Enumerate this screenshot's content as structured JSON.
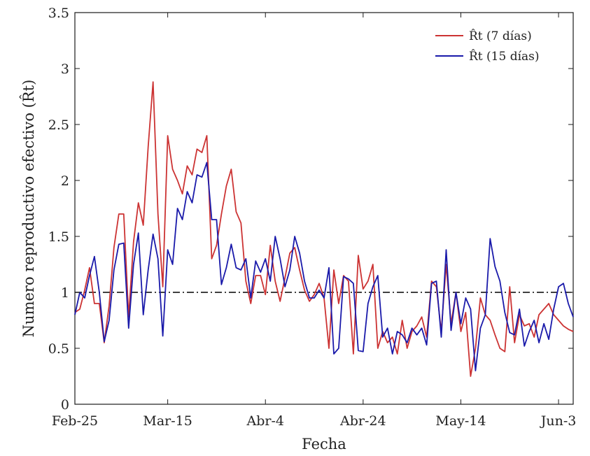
{
  "chart_data": {
    "type": "line",
    "xlabel": "Fecha",
    "ylabel": "Numero reproductivo efectivo (R̂t)",
    "x_tick_labels": [
      "Feb-25",
      "Mar-15",
      "Abr-4",
      "Abr-24",
      "May-14",
      "Jun-3"
    ],
    "x_tick_days": [
      0,
      19,
      39,
      59,
      79,
      99
    ],
    "x_range_days": [
      0,
      102
    ],
    "x_unit": "days from Feb-25",
    "ylim": [
      0,
      3.5
    ],
    "y_ticks": [
      0,
      0.5,
      1,
      1.5,
      2,
      2.5,
      3,
      3.5
    ],
    "y_tick_labels": [
      "0",
      "0.5",
      "1",
      "1.5",
      "2",
      "2.5",
      "3",
      "3.5"
    ],
    "grid": false,
    "legend_position": "top-right",
    "reference_line": {
      "y": 1,
      "style": "dash-dot",
      "color": "#000000"
    },
    "series": [
      {
        "name": "R̂t (7 días)",
        "color": "#cc3333",
        "x": [
          0,
          1,
          2,
          3,
          4,
          5,
          6,
          7,
          8,
          9,
          10,
          11,
          12,
          13,
          14,
          15,
          16,
          17,
          18,
          19,
          20,
          21,
          22,
          23,
          24,
          25,
          26,
          27,
          28,
          29,
          30,
          31,
          32,
          33,
          34,
          35,
          36,
          37,
          38,
          39,
          40,
          41,
          42,
          43,
          44,
          45,
          46,
          47,
          48,
          49,
          50,
          51,
          52,
          53,
          54,
          55,
          56,
          57,
          58,
          59,
          60,
          61,
          62,
          63,
          64,
          65,
          66,
          67,
          68,
          69,
          70,
          71,
          72,
          73,
          74,
          75,
          76,
          77,
          78,
          79,
          80,
          81,
          82,
          83,
          84,
          85,
          86,
          87,
          88,
          89,
          90,
          91,
          92,
          93,
          94,
          95,
          96,
          97,
          98,
          99,
          100,
          101,
          102
        ],
        "values": [
          0.82,
          0.85,
          1.02,
          1.22,
          0.9,
          0.9,
          0.55,
          0.88,
          1.4,
          1.7,
          1.7,
          0.78,
          1.45,
          1.8,
          1.6,
          2.3,
          2.88,
          1.7,
          1.05,
          2.4,
          2.1,
          2.0,
          1.88,
          2.13,
          2.05,
          2.28,
          2.25,
          2.4,
          1.3,
          1.42,
          1.7,
          1.95,
          2.1,
          1.72,
          1.62,
          1.1,
          0.9,
          1.15,
          1.15,
          0.98,
          1.42,
          1.1,
          0.92,
          1.13,
          1.35,
          1.4,
          1.2,
          1.02,
          0.92,
          0.98,
          1.08,
          0.95,
          0.5,
          1.2,
          0.9,
          1.15,
          1.1,
          0.45,
          1.33,
          1.03,
          1.1,
          1.25,
          0.5,
          0.65,
          0.55,
          0.6,
          0.45,
          0.75,
          0.5,
          0.65,
          0.7,
          0.78,
          0.6,
          1.1,
          1.05,
          0.65,
          1.25,
          0.72,
          1.0,
          0.65,
          0.82,
          0.25,
          0.5,
          0.95,
          0.8,
          0.75,
          0.62,
          0.5,
          0.47,
          1.05,
          0.55,
          0.8,
          0.7,
          0.72,
          0.6,
          0.8,
          0.85,
          0.9,
          0.8,
          0.75,
          0.7,
          0.67,
          0.65
        ]
      },
      {
        "name": "R̂t (15 días)",
        "color": "#1a1aaa",
        "x": [
          0,
          1,
          2,
          3,
          4,
          5,
          6,
          7,
          8,
          9,
          10,
          11,
          12,
          13,
          14,
          15,
          16,
          17,
          18,
          19,
          20,
          21,
          22,
          23,
          24,
          25,
          26,
          27,
          28,
          29,
          30,
          31,
          32,
          33,
          34,
          35,
          36,
          37,
          38,
          39,
          40,
          41,
          42,
          43,
          44,
          45,
          46,
          47,
          48,
          49,
          50,
          51,
          52,
          53,
          54,
          55,
          56,
          57,
          58,
          59,
          60,
          61,
          62,
          63,
          64,
          65,
          66,
          67,
          68,
          69,
          70,
          71,
          72,
          73,
          74,
          75,
          76,
          77,
          78,
          79,
          80,
          81,
          82,
          83,
          84,
          85,
          86,
          87,
          88,
          89,
          90,
          91,
          92,
          93,
          94,
          95,
          96,
          97,
          98,
          99,
          100,
          101,
          102
        ],
        "values": [
          0.8,
          1.0,
          0.95,
          1.15,
          1.32,
          1.0,
          0.56,
          0.75,
          1.2,
          1.43,
          1.44,
          0.68,
          1.25,
          1.53,
          0.8,
          1.2,
          1.52,
          1.3,
          0.61,
          1.38,
          1.25,
          1.75,
          1.65,
          1.9,
          1.8,
          2.05,
          2.03,
          2.16,
          1.65,
          1.65,
          1.07,
          1.22,
          1.43,
          1.22,
          1.2,
          1.3,
          0.95,
          1.28,
          1.18,
          1.3,
          1.1,
          1.5,
          1.3,
          1.05,
          1.2,
          1.5,
          1.35,
          1.1,
          0.95,
          0.95,
          1.02,
          0.95,
          1.22,
          0.45,
          0.5,
          1.14,
          1.12,
          1.08,
          0.48,
          0.47,
          0.9,
          1.05,
          1.15,
          0.6,
          0.68,
          0.45,
          0.65,
          0.62,
          0.55,
          0.68,
          0.62,
          0.68,
          0.53,
          1.08,
          1.1,
          0.6,
          1.38,
          0.66,
          1.0,
          0.72,
          0.95,
          0.85,
          0.3,
          0.68,
          0.8,
          1.48,
          1.23,
          1.1,
          0.82,
          0.64,
          0.62,
          0.85,
          0.52,
          0.65,
          0.75,
          0.55,
          0.72,
          0.58,
          0.85,
          1.05,
          1.08,
          0.9,
          0.78
        ]
      }
    ]
  }
}
